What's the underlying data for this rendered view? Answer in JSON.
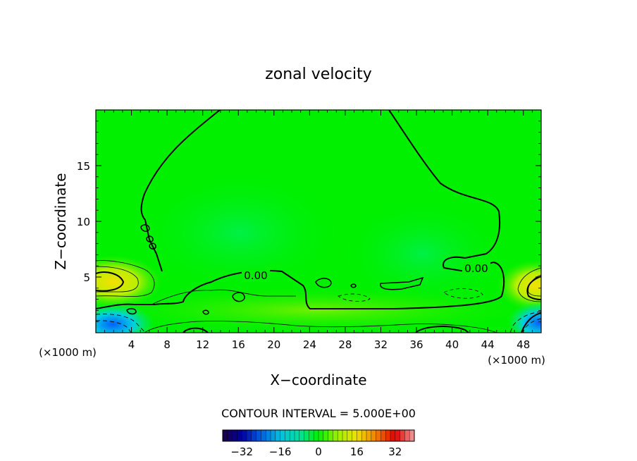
{
  "chart_data": {
    "type": "heatmap",
    "title": "zonal velocity",
    "xlabel": "X−coordinate",
    "ylabel": "Z−coordinate",
    "x_unit_left": "(×1000 m)",
    "x_unit_right": "(×1000 m)",
    "xlim": [
      0,
      50
    ],
    "ylim": [
      0,
      20
    ],
    "x_ticks": [
      4,
      8,
      12,
      16,
      20,
      24,
      28,
      32,
      36,
      40,
      44,
      48
    ],
    "y_ticks": [
      5,
      10,
      15
    ],
    "contour_interval_label": "CONTOUR INTERVAL = 5.000E+00",
    "contour_label": "0.00",
    "colorbar": {
      "range": [
        -40,
        40
      ],
      "ticks": [
        -32,
        -16,
        0,
        16,
        32
      ],
      "tick_labels": [
        "−32",
        "−16",
        "0",
        "16",
        "32"
      ],
      "colors": [
        "#1a0040",
        "#0000a0",
        "#0060e0",
        "#00c0e0",
        "#00e0a0",
        "#00f000",
        "#a0f000",
        "#f0e000",
        "#f08000",
        "#e00000",
        "#f0a0a0"
      ]
    },
    "field_description": "background near 0 (green); warm cores (~15) near x=1-3,z=4 and x=48-50,z=4; cold cores (~-15) near x=1-3,z=1 and x=48-50,z=1",
    "features": [
      {
        "kind": "max",
        "x": 1.5,
        "z": 4.5,
        "value": 15
      },
      {
        "kind": "max",
        "x": 49,
        "z": 4,
        "value": 15
      },
      {
        "kind": "min",
        "x": 1.5,
        "z": 0.8,
        "value": -15
      },
      {
        "kind": "min",
        "x": 49,
        "z": 0.8,
        "value": -15
      }
    ]
  }
}
